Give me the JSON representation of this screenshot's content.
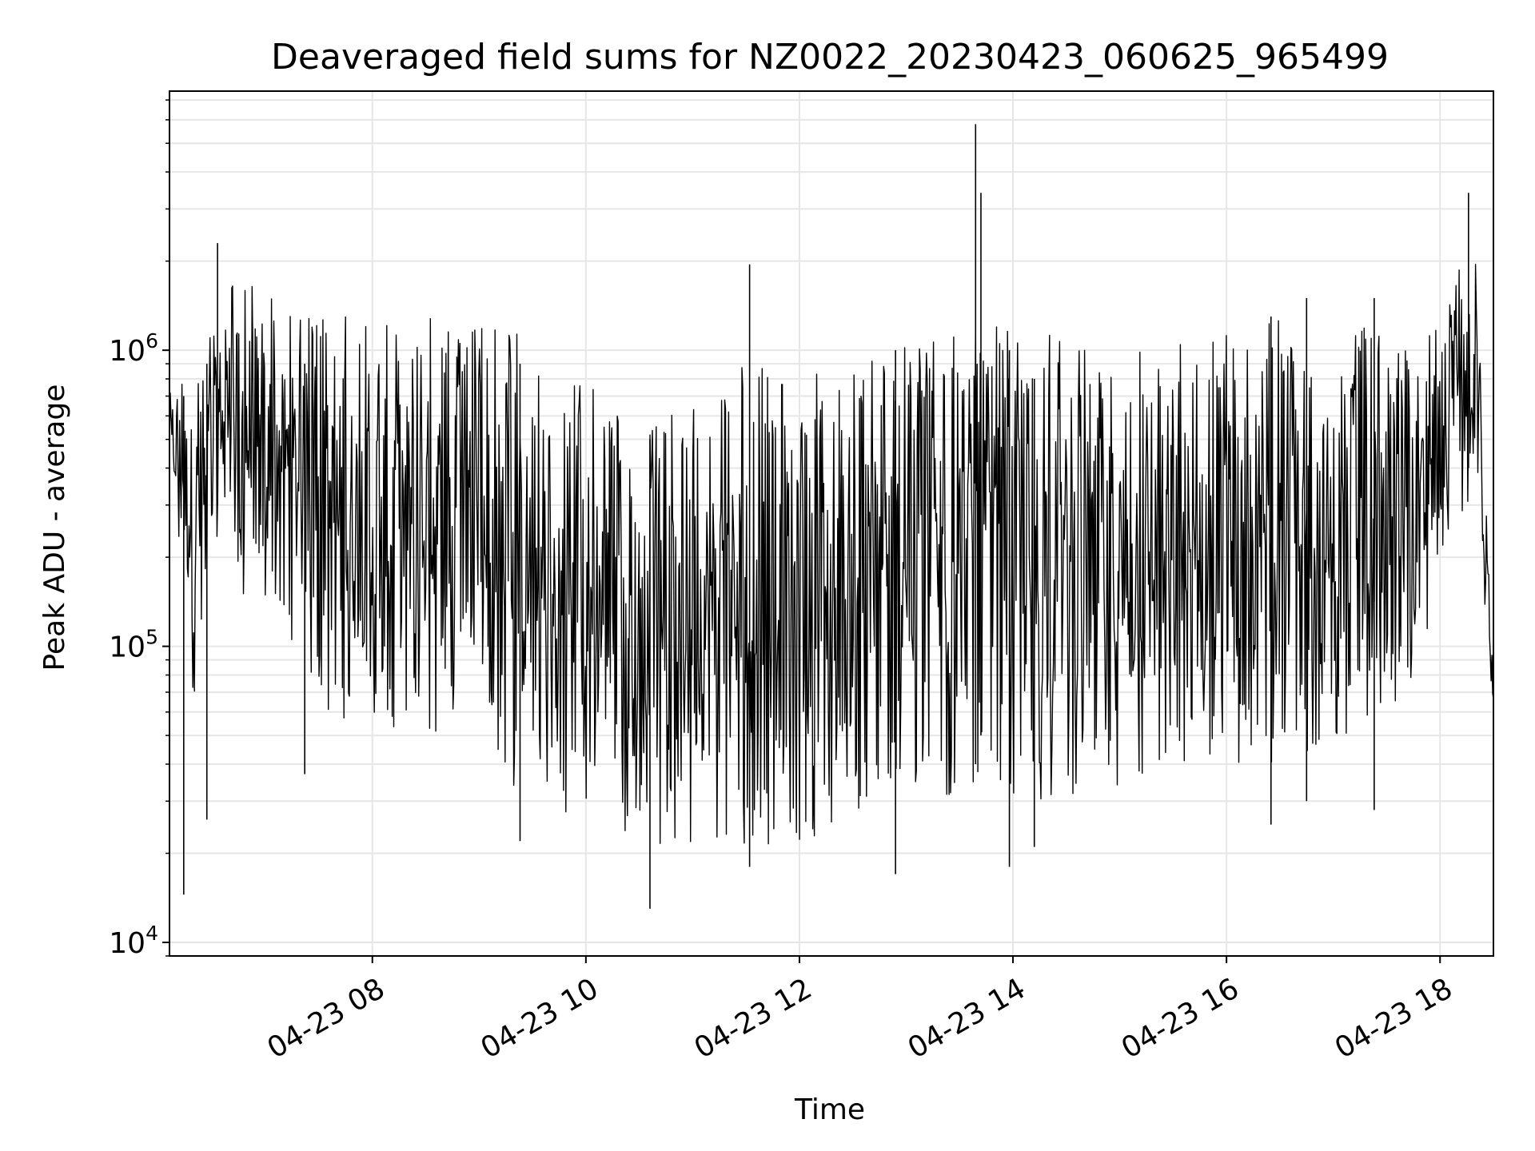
{
  "chart_data": {
    "type": "line",
    "title": "Deaveraged field sums for NZ0022_20230423_060625_965499",
    "xlabel": "Time",
    "ylabel": "Peak ADU - average",
    "y_scale": "log",
    "ylim": [
      9000,
      7500000
    ],
    "xlim": [
      "2023-04-23 06:06",
      "2023-04-23 18:30"
    ],
    "grid": true,
    "line_color": "#000000",
    "grid_color": "#e6e6e6",
    "x_ticks": [
      {
        "value": "2023-04-23 08:00",
        "label": "04-23 08"
      },
      {
        "value": "2023-04-23 10:00",
        "label": "04-23 10"
      },
      {
        "value": "2023-04-23 12:00",
        "label": "04-23 12"
      },
      {
        "value": "2023-04-23 14:00",
        "label": "04-23 14"
      },
      {
        "value": "2023-04-23 16:00",
        "label": "04-23 16"
      },
      {
        "value": "2023-04-23 18:00",
        "label": "04-23 18"
      }
    ],
    "y_ticks": [
      {
        "value": 10000,
        "base": "10",
        "exp": "4"
      },
      {
        "value": 100000,
        "base": "10",
        "exp": "5"
      },
      {
        "value": 1000000,
        "base": "10",
        "exp": "6"
      }
    ],
    "series": [
      {
        "name": "",
        "envelope": [
          {
            "x": "2023-04-23 06:06",
            "low": 380000,
            "high": 850000
          },
          {
            "x": "2023-04-23 06:20",
            "low": 60000,
            "high": 1000000
          },
          {
            "x": "2023-04-23 06:35",
            "low": 300000,
            "high": 1500000
          },
          {
            "x": "2023-04-23 06:50",
            "low": 120000,
            "high": 2200000
          },
          {
            "x": "2023-04-23 07:05",
            "low": 150000,
            "high": 1500000
          },
          {
            "x": "2023-04-23 07:30",
            "low": 60000,
            "high": 1300000
          },
          {
            "x": "2023-04-23 08:00",
            "low": 50000,
            "high": 1300000
          },
          {
            "x": "2023-04-23 08:30",
            "low": 50000,
            "high": 1400000
          },
          {
            "x": "2023-04-23 09:00",
            "low": 55000,
            "high": 1200000
          },
          {
            "x": "2023-04-23 09:20",
            "low": 32000,
            "high": 1200000
          },
          {
            "x": "2023-04-23 09:40",
            "low": 28000,
            "high": 700000
          },
          {
            "x": "2023-04-23 10:00",
            "low": 27000,
            "high": 850000
          },
          {
            "x": "2023-04-23 10:30",
            "low": 22000,
            "high": 500000
          },
          {
            "x": "2023-04-23 11:00",
            "low": 20000,
            "high": 700000
          },
          {
            "x": "2023-04-23 11:30",
            "low": 20000,
            "high": 900000
          },
          {
            "x": "2023-04-23 12:00",
            "low": 22000,
            "high": 800000
          },
          {
            "x": "2023-04-23 12:30",
            "low": 25000,
            "high": 900000
          },
          {
            "x": "2023-04-23 13:00",
            "low": 30000,
            "high": 1100000
          },
          {
            "x": "2023-04-23 13:30",
            "low": 30000,
            "high": 1200000
          },
          {
            "x": "2023-04-23 14:00",
            "low": 30000,
            "high": 1200000
          },
          {
            "x": "2023-04-23 14:30",
            "low": 30000,
            "high": 1100000
          },
          {
            "x": "2023-04-23 15:00",
            "low": 30000,
            "high": 1000000
          },
          {
            "x": "2023-04-23 15:30",
            "low": 35000,
            "high": 1100000
          },
          {
            "x": "2023-04-23 16:00",
            "low": 35000,
            "high": 1300000
          },
          {
            "x": "2023-04-23 16:30",
            "low": 40000,
            "high": 1300000
          },
          {
            "x": "2023-04-23 17:00",
            "low": 45000,
            "high": 1200000
          },
          {
            "x": "2023-04-23 17:30",
            "low": 55000,
            "high": 1200000
          },
          {
            "x": "2023-04-23 17:50",
            "low": 80000,
            "high": 1000000
          },
          {
            "x": "2023-04-23 18:05",
            "low": 250000,
            "high": 2000000
          },
          {
            "x": "2023-04-23 18:20",
            "low": 300000,
            "high": 2000000
          },
          {
            "x": "2023-04-23 18:30",
            "low": 50000,
            "high": 120000
          }
        ],
        "spikes": [
          {
            "x": "2023-04-23 06:14",
            "low": 14500,
            "high": 700000
          },
          {
            "x": "2023-04-23 06:27",
            "low": 26000,
            "high": 900000
          },
          {
            "x": "2023-04-23 06:33",
            "low": 300000,
            "high": 2300000
          },
          {
            "x": "2023-04-23 07:22",
            "low": 37000,
            "high": 900000
          },
          {
            "x": "2023-04-23 09:23",
            "low": 22000,
            "high": 900000
          },
          {
            "x": "2023-04-23 10:36",
            "low": 13000,
            "high": 500000
          },
          {
            "x": "2023-04-23 11:32",
            "low": 18000,
            "high": 1950000
          },
          {
            "x": "2023-04-23 12:54",
            "low": 17000,
            "high": 1000000
          },
          {
            "x": "2023-04-23 13:39",
            "low": 40000,
            "high": 5800000
          },
          {
            "x": "2023-04-23 13:42",
            "low": 50000,
            "high": 3400000
          },
          {
            "x": "2023-04-23 13:58",
            "low": 18000,
            "high": 1000000
          },
          {
            "x": "2023-04-23 14:12",
            "low": 21000,
            "high": 800000
          },
          {
            "x": "2023-04-23 16:25",
            "low": 25000,
            "high": 1300000
          },
          {
            "x": "2023-04-23 16:45",
            "low": 30000,
            "high": 1500000
          },
          {
            "x": "2023-04-23 17:23",
            "low": 28000,
            "high": 1500000
          },
          {
            "x": "2023-04-23 18:16",
            "low": 400000,
            "high": 3400000
          }
        ]
      }
    ]
  }
}
